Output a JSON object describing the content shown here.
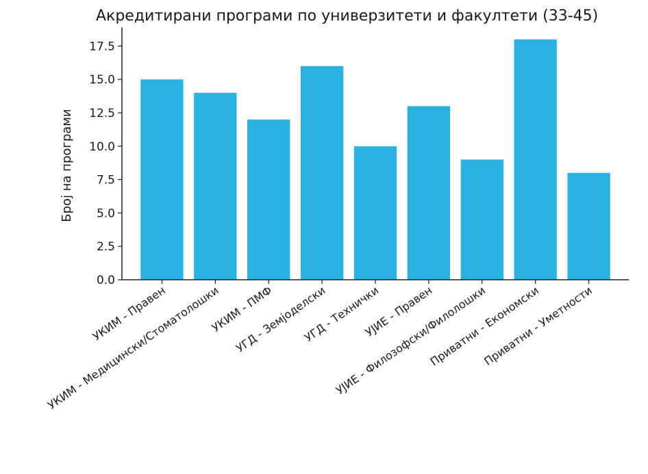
{
  "chart_data": {
    "type": "bar",
    "title": "Акредитирани програми по универзитети и факултети (33-45)",
    "xlabel": "",
    "ylabel": "Број на програми",
    "categories": [
      "УКИМ - Правен",
      "УКИМ - Медицински/Стоматолошки",
      "УКИМ - ПМФ",
      "УГД - Земјоделски",
      "УГД - Технички",
      "УЈИЕ - Правен",
      "УЈИЕ - Филозофски/Филолошки",
      "Приватни - Економски",
      "Приватни - Уметности"
    ],
    "values": [
      15,
      14,
      12,
      16,
      10,
      13,
      9,
      18,
      8
    ],
    "ylim": [
      0,
      18.9
    ],
    "yticks": [
      0.0,
      2.5,
      5.0,
      7.5,
      10.0,
      12.5,
      15.0,
      17.5
    ],
    "ytick_labels": [
      "0.0",
      "2.5",
      "5.0",
      "7.5",
      "10.0",
      "12.5",
      "15.0",
      "17.5"
    ],
    "bar_color": "#29b2e1",
    "grid": false,
    "legend": "none"
  }
}
